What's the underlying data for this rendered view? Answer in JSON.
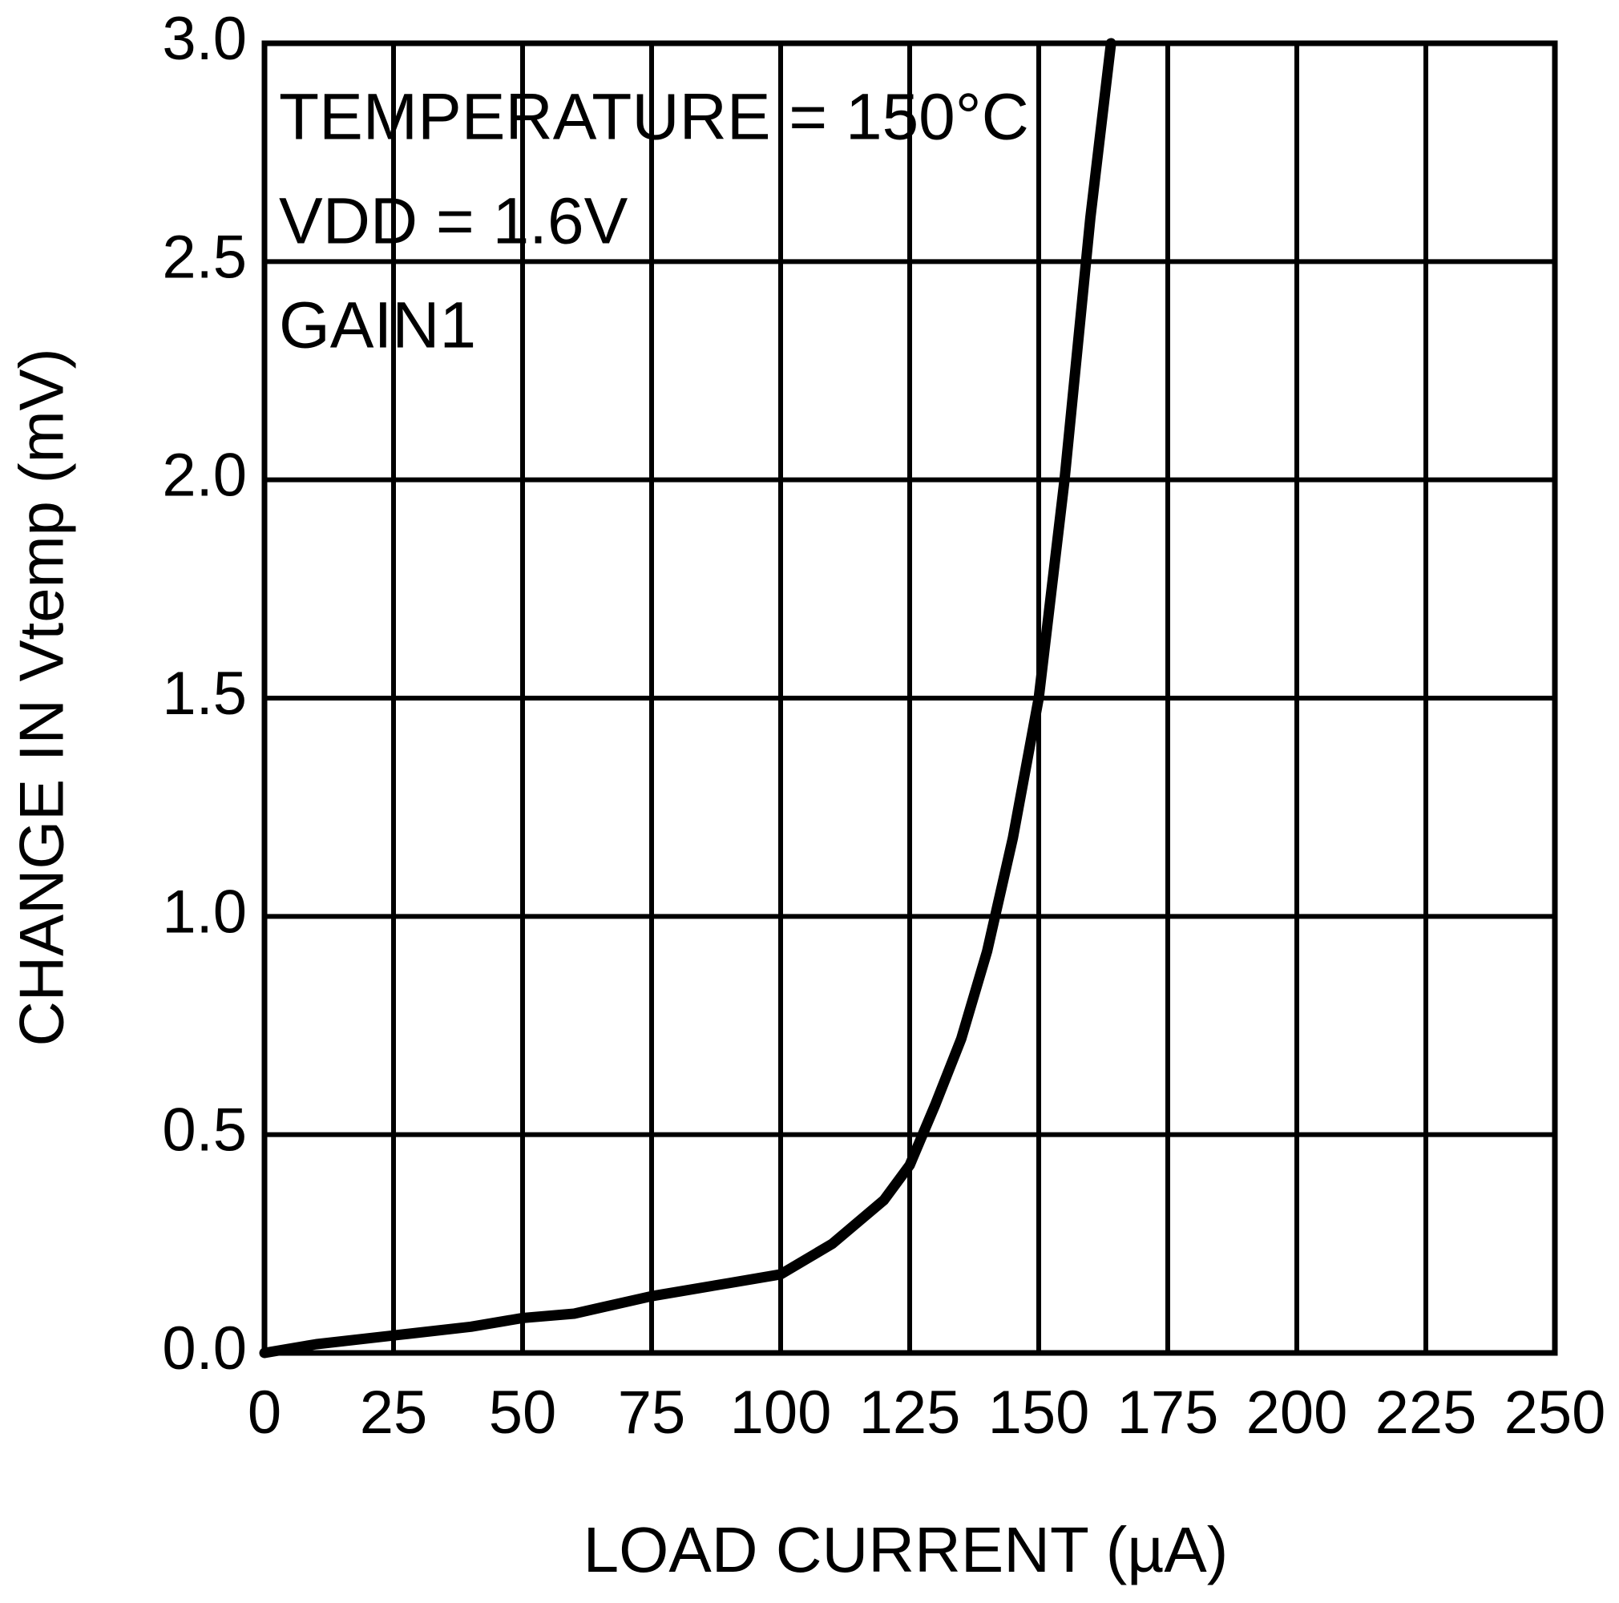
{
  "chart_data": {
    "type": "line",
    "x_label": "LOAD CURRENT (µA)",
    "y_label": "CHANGE IN Vtemp (mV)",
    "annotations": [
      "TEMPERATURE = 150°C",
      "VDD = 1.6V",
      "GAIN1"
    ],
    "x": [
      0,
      10,
      25,
      40,
      50,
      60,
      75,
      90,
      100,
      110,
      120,
      125,
      130,
      135,
      140,
      145,
      150,
      155,
      160,
      164
    ],
    "series": [
      {
        "color": "#000000",
        "values": [
          0,
          0.02,
          0.04,
          0.06,
          0.08,
          0.09,
          0.13,
          0.16,
          0.18,
          0.25,
          0.35,
          0.43,
          0.57,
          0.72,
          0.92,
          1.18,
          1.5,
          2.0,
          2.6,
          3.0
        ]
      }
    ],
    "xlim": [
      0,
      250
    ],
    "xticks": [
      0,
      25,
      50,
      75,
      100,
      125,
      150,
      175,
      200,
      225,
      250
    ],
    "ylim": [
      0,
      3
    ],
    "yticks": [
      {
        "value": 0,
        "label": "0.0"
      },
      0.5,
      {
        "value": 1,
        "label": "1.0"
      },
      1.5,
      {
        "value": 2,
        "label": "2.0"
      },
      2.5,
      {
        "value": 3,
        "label": "3.0"
      }
    ],
    "grid": true
  }
}
